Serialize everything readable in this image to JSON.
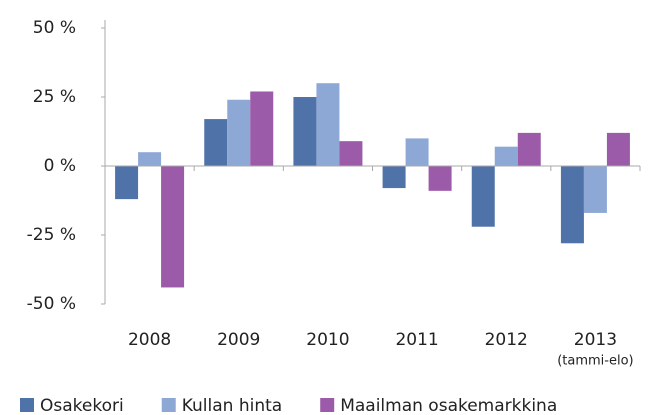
{
  "chart_data": {
    "type": "bar",
    "categories": [
      "2008",
      "2009",
      "2010",
      "2011",
      "2012",
      "2013"
    ],
    "annotations": [
      "(tammi-elo)"
    ],
    "series": [
      {
        "name": "Osakekori",
        "color": "#4f72a9",
        "values": [
          -12,
          17,
          25,
          -8,
          -22,
          -28
        ]
      },
      {
        "name": "Kullan hinta",
        "color": "#8ea8d6",
        "values": [
          5,
          24,
          30,
          10,
          7,
          -17
        ]
      },
      {
        "name": "Maailman osakemarkkina",
        "color": "#9c5ba8",
        "values": [
          -44,
          27,
          9,
          -9,
          12,
          12
        ]
      }
    ],
    "ylim": [
      -50,
      50
    ],
    "yticks": [
      {
        "value": 50,
        "label": "50 %"
      },
      {
        "value": 25,
        "label": "25 %"
      },
      {
        "value": 0,
        "label": "0 %"
      },
      {
        "value": -25,
        "label": "-25 %"
      },
      {
        "value": -50,
        "label": "-50 %"
      }
    ],
    "legend": "bottom"
  }
}
